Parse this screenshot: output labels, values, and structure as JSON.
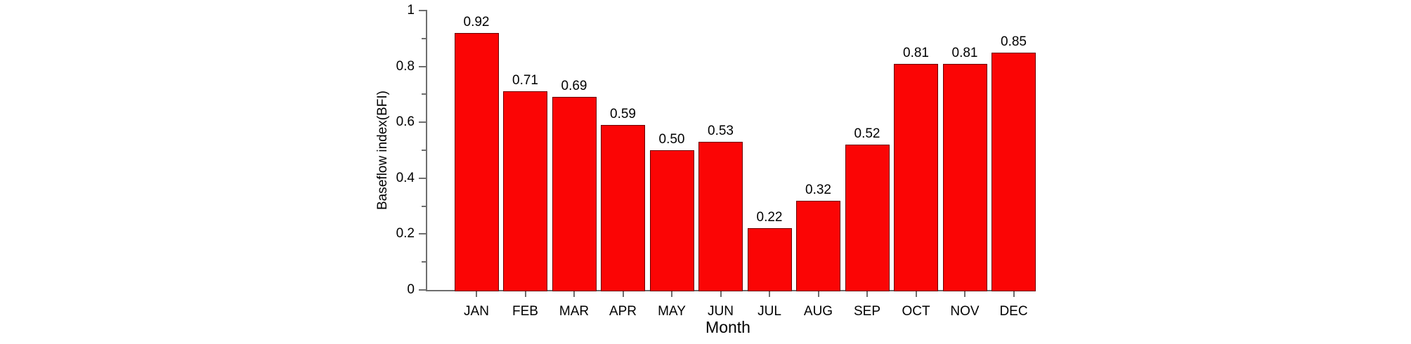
{
  "chart_data": {
    "type": "bar",
    "title": "",
    "xlabel": "Month",
    "ylabel": "Baseflow index(BFI)",
    "categories": [
      "JAN",
      "FEB",
      "MAR",
      "APR",
      "MAY",
      "JUN",
      "JUL",
      "AUG",
      "SEP",
      "OCT",
      "NOV",
      "DEC"
    ],
    "values": [
      0.92,
      0.71,
      0.69,
      0.59,
      0.5,
      0.53,
      0.22,
      0.32,
      0.52,
      0.81,
      0.81,
      0.85
    ],
    "value_labels": [
      "0.92",
      "0.71",
      "0.69",
      "0.59",
      "0.50",
      "0.53",
      "0.22",
      "0.32",
      "0.52",
      "0.81",
      "0.81",
      "0.85"
    ],
    "ylim": [
      0,
      1
    ],
    "yticks_major": [
      0,
      0.2,
      0.4,
      0.6,
      0.8,
      1
    ],
    "ytick_labels": [
      "0",
      "0.2",
      "0.4",
      "0.6",
      "0.8",
      "1"
    ],
    "yticks_minor": [
      0.1,
      0.3,
      0.5,
      0.7,
      0.9
    ],
    "grid": false,
    "legend": "none",
    "bar_color": "#fb0505",
    "bar_edge_color": "#6b0000",
    "axis_color": "#6e6e6e",
    "text_color": "#000000",
    "background_color": "#ffffff"
  }
}
